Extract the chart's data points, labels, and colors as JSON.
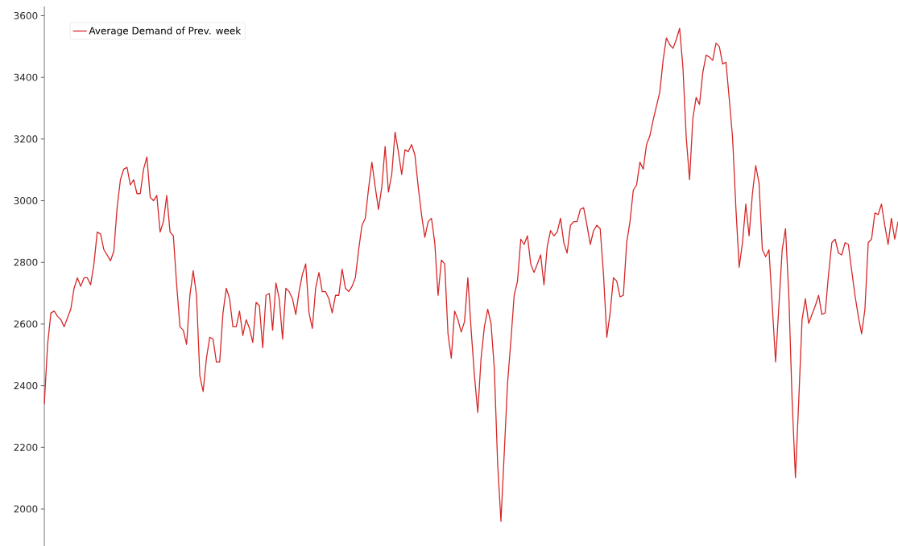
{
  "chart_data": {
    "type": "line",
    "categories": [
      null,
      null,
      null,
      null,
      null,
      null,
      null,
      null,
      null,
      null,
      null,
      null,
      null,
      null,
      null,
      null,
      null,
      null,
      null,
      null,
      null,
      null,
      null,
      null,
      null,
      null,
      null,
      null,
      null,
      null,
      null,
      null,
      null,
      null,
      null,
      null,
      null,
      null,
      null,
      null,
      null,
      null,
      null,
      null,
      null,
      null,
      null,
      null,
      null,
      null,
      null,
      null,
      null,
      null,
      null,
      null,
      null,
      null,
      null,
      null,
      null,
      null,
      null,
      null,
      null,
      null,
      null,
      null,
      null,
      null,
      null,
      null,
      null,
      null,
      null,
      null,
      null,
      null,
      null,
      null,
      null,
      null,
      null,
      null,
      null,
      null,
      null,
      null,
      null,
      null,
      null,
      null,
      null,
      null,
      null,
      null,
      null,
      null,
      null,
      null,
      null,
      null,
      null,
      null,
      null,
      null,
      null,
      null,
      null,
      null,
      null,
      null,
      null,
      null,
      null,
      null,
      null,
      null,
      null,
      null,
      null,
      null,
      null,
      null,
      null,
      null,
      null,
      null,
      null,
      null,
      null,
      null,
      null,
      null,
      null,
      null,
      null,
      null,
      null,
      null,
      null,
      null,
      null,
      null,
      null,
      null,
      null,
      null,
      null,
      null,
      null,
      null,
      null,
      null,
      null,
      null,
      null,
      null,
      null,
      null,
      null,
      null,
      null,
      null,
      null,
      null,
      null,
      null,
      null,
      null,
      null,
      null,
      null,
      null,
      null,
      null,
      null,
      null,
      null,
      null,
      null,
      null,
      null,
      null,
      null,
      null,
      null,
      null,
      null,
      null,
      null,
      null,
      null,
      null,
      null,
      null,
      null,
      null,
      null,
      null,
      null,
      null,
      null,
      null,
      null,
      null,
      null,
      null,
      null,
      null,
      null,
      null,
      null,
      null,
      null,
      null,
      null,
      null,
      null,
      null,
      null,
      null,
      null,
      null,
      null,
      null,
      null,
      null,
      null,
      null,
      null,
      null,
      null,
      null,
      null,
      null,
      null,
      null,
      null,
      null,
      null,
      null,
      null,
      null,
      null,
      null,
      null,
      null,
      null,
      null,
      null,
      null,
      null,
      null,
      null,
      null,
      null,
      null,
      null
    ],
    "series": [
      {
        "name": "Average Demand of Prev. week",
        "color": "#d62728",
        "values": [
          2341,
          2534,
          2636,
          2642,
          2625,
          2614,
          2591,
          2620,
          2648,
          2716,
          2750,
          2722,
          2750,
          2750,
          2727,
          2795,
          2898,
          2892,
          2841,
          2824,
          2805,
          2835,
          2977,
          3068,
          3102,
          3108,
          3051,
          3068,
          3023,
          3023,
          3102,
          3142,
          3011,
          3000,
          3017,
          2898,
          2932,
          3017,
          2898,
          2886,
          2727,
          2591,
          2580,
          2534,
          2693,
          2773,
          2693,
          2432,
          2381,
          2489,
          2557,
          2551,
          2477,
          2477,
          2636,
          2716,
          2682,
          2591,
          2591,
          2642,
          2563,
          2614,
          2586,
          2540,
          2670,
          2659,
          2523,
          2693,
          2699,
          2580,
          2733,
          2682,
          2551,
          2716,
          2705,
          2682,
          2631,
          2705,
          2761,
          2795,
          2636,
          2586,
          2716,
          2767,
          2705,
          2705,
          2682,
          2636,
          2693,
          2693,
          2778,
          2716,
          2705,
          2722,
          2750,
          2841,
          2920,
          2943,
          3040,
          3125,
          3045,
          2972,
          3045,
          3176,
          3028,
          3085,
          3222,
          3159,
          3085,
          3165,
          3159,
          3182,
          3148,
          3045,
          2955,
          2881,
          2932,
          2943,
          2864,
          2693,
          2807,
          2795,
          2568,
          2489,
          2642,
          2614,
          2574,
          2608,
          2750,
          2580,
          2432,
          2313,
          2489,
          2591,
          2648,
          2602,
          2455,
          2148,
          1960,
          2182,
          2409,
          2545,
          2693,
          2739,
          2875,
          2858,
          2886,
          2795,
          2767,
          2795,
          2824,
          2727,
          2852,
          2903,
          2886,
          2898,
          2943,
          2864,
          2830,
          2920,
          2932,
          2932,
          2972,
          2977,
          2920,
          2858,
          2903,
          2920,
          2909,
          2761,
          2557,
          2636,
          2750,
          2739,
          2688,
          2693,
          2864,
          2932,
          3034,
          3051,
          3125,
          3102,
          3182,
          3210,
          3261,
          3307,
          3352,
          3455,
          3528,
          3506,
          3494,
          3523,
          3559,
          3432,
          3205,
          3068,
          3267,
          3335,
          3312,
          3415,
          3472,
          3466,
          3455,
          3511,
          3500,
          3443,
          3449,
          3330,
          3205,
          2977,
          2784,
          2864,
          2989,
          2886,
          3023,
          3114,
          3057,
          2841,
          2818,
          2841,
          2659,
          2477,
          2659,
          2841,
          2909,
          2693,
          2352,
          2102,
          2352,
          2614,
          2682,
          2602,
          2631,
          2659,
          2693,
          2631,
          2636,
          2761,
          2864,
          2875,
          2830,
          2824,
          2864,
          2858,
          2773,
          2693,
          2625,
          2568,
          2648,
          2864,
          2875,
          2960,
          2955,
          2989,
          2920,
          2858,
          2943,
          2875,
          2932
        ]
      }
    ],
    "ylim": [
      1880,
      3630
    ],
    "yticks": [
      2000,
      2200,
      2400,
      2600,
      2800,
      3000,
      3200,
      3400,
      3600
    ],
    "legend": "top left",
    "tick_labels": "y"
  }
}
